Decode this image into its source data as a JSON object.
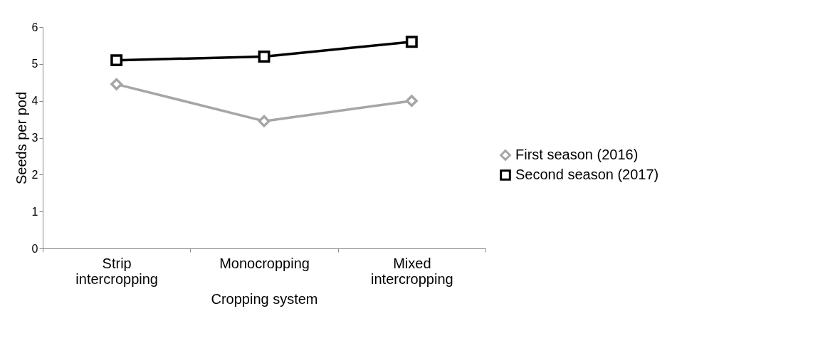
{
  "chart_data": {
    "type": "line",
    "xlabel": "Cropping system",
    "ylabel": "Seeds per pod",
    "categories": [
      "Strip intercropping",
      "Monocropping",
      "Mixed intercropping"
    ],
    "series": [
      {
        "name": "First season (2016)",
        "color": "#a6a6a6",
        "marker": "diamond",
        "values": [
          4.45,
          3.45,
          4.0
        ]
      },
      {
        "name": "Second season (2017)",
        "color": "#000000",
        "marker": "square",
        "values": [
          5.1,
          5.2,
          5.6
        ]
      }
    ],
    "ylim": [
      0,
      6
    ],
    "yticks": [
      0,
      1,
      2,
      3,
      4,
      5,
      6
    ],
    "grid": false,
    "legend": "right"
  }
}
